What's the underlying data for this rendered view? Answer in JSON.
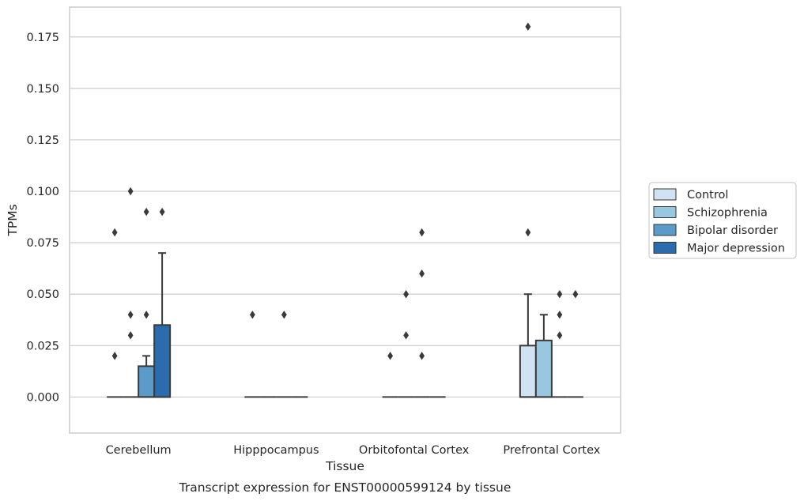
{
  "chart_data": {
    "type": "box",
    "caption": "Transcript expression for ENST00000599124 by tissue",
    "xlabel": "Tissue",
    "ylabel": "TPMs",
    "ylim": [
      -0.0175,
      0.1895
    ],
    "yticks": [
      "0.000",
      "0.025",
      "0.050",
      "0.075",
      "0.100",
      "0.125",
      "0.150",
      "0.175"
    ],
    "ytick_values": [
      0,
      0.025,
      0.05,
      0.075,
      0.1,
      0.125,
      0.15,
      0.175
    ],
    "grid": "horizontal",
    "legend_position": "right",
    "categories": [
      "Cerebellum",
      "Hipppocampus",
      "Orbitofontal Cortex",
      "Prefrontal Cortex"
    ],
    "series": [
      {
        "name": "Control",
        "color": "#d1e3f3",
        "boxes": [
          {
            "q1": 0,
            "median": 0,
            "q3": 0,
            "whisker_high": 0,
            "outliers": [
              0.02,
              0.08
            ]
          },
          {
            "q1": 0,
            "median": 0,
            "q3": 0,
            "whisker_high": 0,
            "outliers": [
              0.04
            ]
          },
          {
            "q1": 0,
            "median": 0,
            "q3": 0,
            "whisker_high": 0,
            "outliers": [
              0.02
            ]
          },
          {
            "q1": 0,
            "median": 0,
            "q3": 0.025,
            "whisker_high": 0.05,
            "outliers": [
              0.08,
              0.18
            ]
          }
        ]
      },
      {
        "name": "Schizophrenia",
        "color": "#9ac7e0",
        "boxes": [
          {
            "q1": 0,
            "median": 0,
            "q3": 0,
            "whisker_high": 0,
            "outliers": [
              0.03,
              0.04,
              0.1
            ]
          },
          {
            "q1": 0,
            "median": 0,
            "q3": 0,
            "whisker_high": 0,
            "outliers": []
          },
          {
            "q1": 0,
            "median": 0,
            "q3": 0,
            "whisker_high": 0,
            "outliers": [
              0.03,
              0.05
            ]
          },
          {
            "q1": 0,
            "median": 0,
            "q3": 0.0275,
            "whisker_high": 0.04,
            "outliers": []
          }
        ]
      },
      {
        "name": "Bipolar disorder",
        "color": "#5b9bc9",
        "boxes": [
          {
            "q1": 0,
            "median": 0,
            "q3": 0.015,
            "whisker_high": 0.02,
            "outliers": [
              0.04,
              0.09
            ]
          },
          {
            "q1": 0,
            "median": 0,
            "q3": 0,
            "whisker_high": 0,
            "outliers": [
              0.04
            ]
          },
          {
            "q1": 0,
            "median": 0,
            "q3": 0,
            "whisker_high": 0,
            "outliers": [
              0.02,
              0.06,
              0.08
            ]
          },
          {
            "q1": 0,
            "median": 0,
            "q3": 0,
            "whisker_high": 0,
            "outliers": [
              0.03,
              0.04,
              0.05
            ]
          }
        ]
      },
      {
        "name": "Major depression",
        "color": "#2a6cad",
        "boxes": [
          {
            "q1": 0,
            "median": 0,
            "q3": 0.035,
            "whisker_high": 0.07,
            "outliers": [
              0.09
            ]
          },
          {
            "q1": 0,
            "median": 0,
            "q3": 0,
            "whisker_high": 0,
            "outliers": []
          },
          {
            "q1": 0,
            "median": 0,
            "q3": 0,
            "whisker_high": 0,
            "outliers": []
          },
          {
            "q1": 0,
            "median": 0,
            "q3": 0,
            "whisker_high": 0,
            "outliers": [
              0.05
            ]
          }
        ]
      }
    ]
  }
}
